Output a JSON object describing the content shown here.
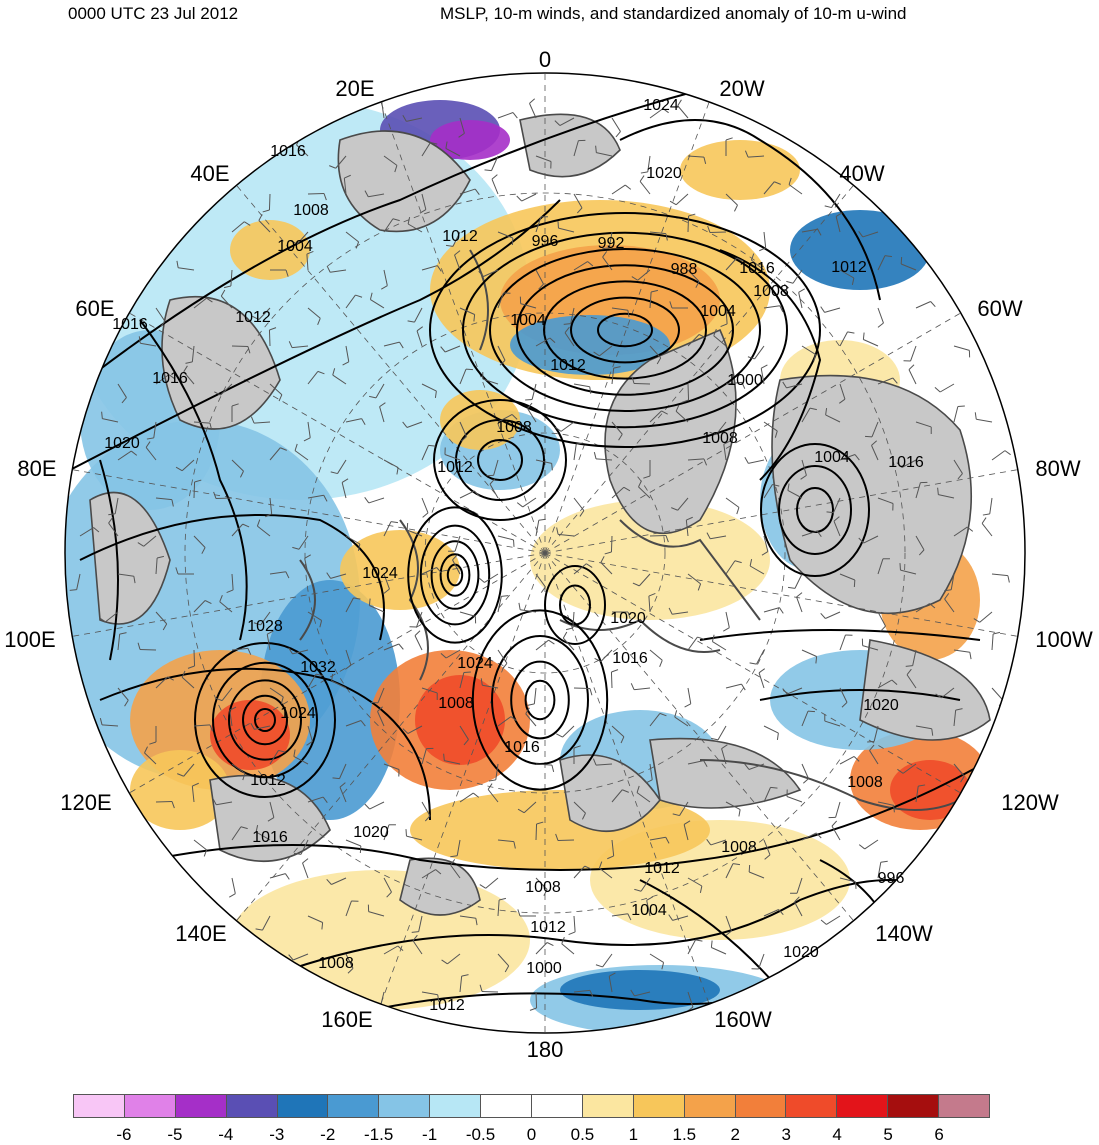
{
  "header": {
    "time_label": "0000 UTC 23 Jul 2012",
    "title": "MSLP, 10-m winds, and standardized anomaly of 10-m u-wind"
  },
  "longitude_labels": [
    "0",
    "20W",
    "40W",
    "60W",
    "80W",
    "100W",
    "120W",
    "140W",
    "160W",
    "180",
    "160E",
    "140E",
    "120E",
    "100E",
    "80E",
    "60E",
    "40E",
    "20E"
  ],
  "isobar_labels": [
    "1024",
    "1020",
    "1016",
    "1008",
    "1004",
    "1012",
    "996",
    "992",
    "988",
    "1004",
    "1008",
    "1004",
    "1012",
    "1008",
    "1012",
    "1016",
    "1004",
    "1000",
    "1008",
    "1012",
    "1016",
    "1016",
    "1020",
    "1024",
    "1028",
    "1032",
    "1024",
    "1020",
    "1016",
    "1024",
    "1016",
    "1008",
    "1012",
    "1016",
    "1020",
    "1020",
    "1008",
    "1012",
    "1008",
    "996",
    "1004",
    "1008",
    "1012",
    "1000",
    "1008",
    "1012",
    "1020",
    "1016",
    "1012"
  ],
  "colorbar": {
    "colors": [
      "#f8c6f6",
      "#e081e8",
      "#a52fc8",
      "#5a4fb4",
      "#1f75b8",
      "#4a9ad2",
      "#85c4e6",
      "#b7e7f5",
      "#ffffff",
      "#ffffff",
      "#fbe6a0",
      "#f7c65a",
      "#f4a24a",
      "#f27f3a",
      "#ef4b2a",
      "#e3141a",
      "#a50e0e",
      "#c47a8c"
    ],
    "tick_labels": [
      "-6",
      "-5",
      "-4",
      "-3",
      "-2",
      "-1.5",
      "-1",
      "-0.5",
      "0",
      "0.5",
      "1",
      "1.5",
      "2",
      "3",
      "4",
      "5",
      "6"
    ]
  },
  "colors": {
    "land_gray": "#c8c8c8",
    "coastline": "#4a4a4a",
    "isobar": "#000000"
  }
}
